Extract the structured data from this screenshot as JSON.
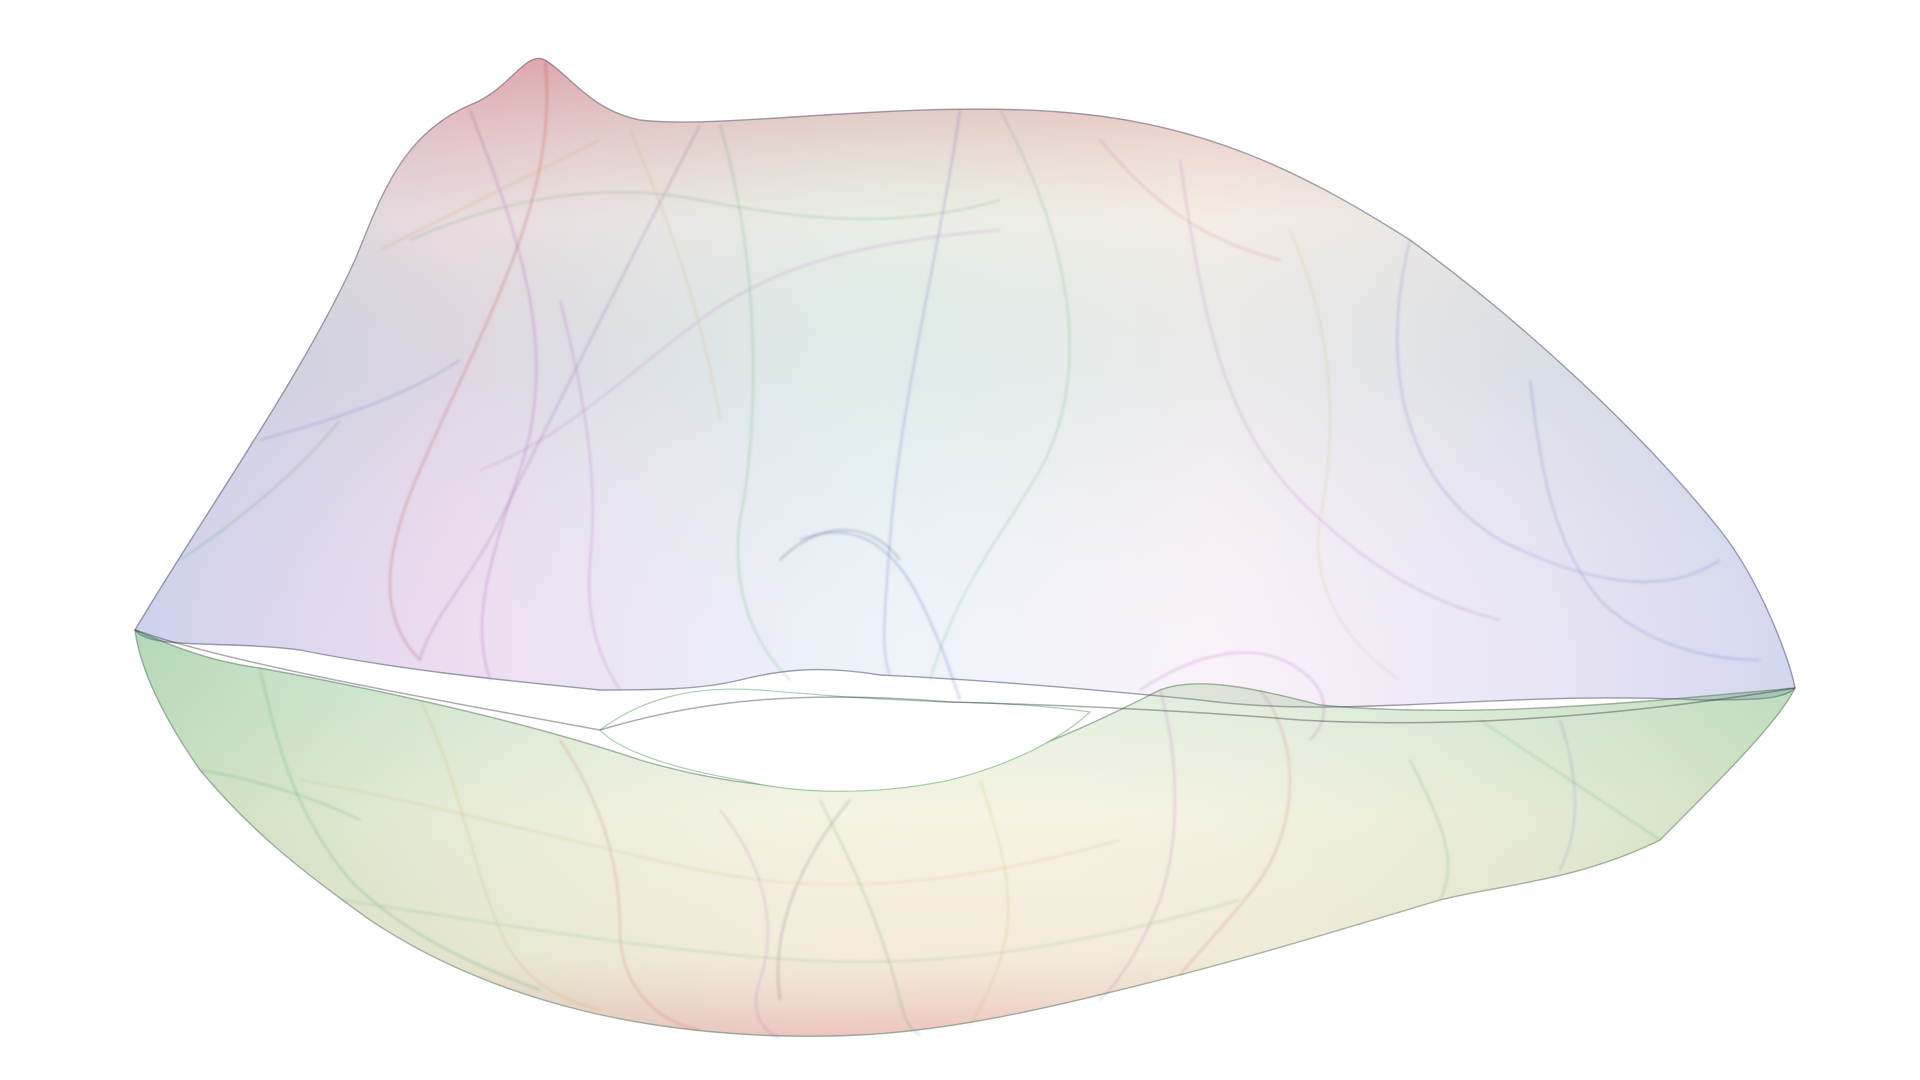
{
  "artwork": {
    "subject": "lips",
    "style": "translucent rainbow ribbon filaments",
    "background_color": "#ffffff",
    "palette": {
      "red": "#c0392b",
      "orange": "#c8a048",
      "yellow": "#d8d890",
      "green": "#3e9a4a",
      "blue": "#3a48b8",
      "violet": "#9b3fb0",
      "pink": "#e0a0d8",
      "dark": "#2a3038"
    }
  }
}
